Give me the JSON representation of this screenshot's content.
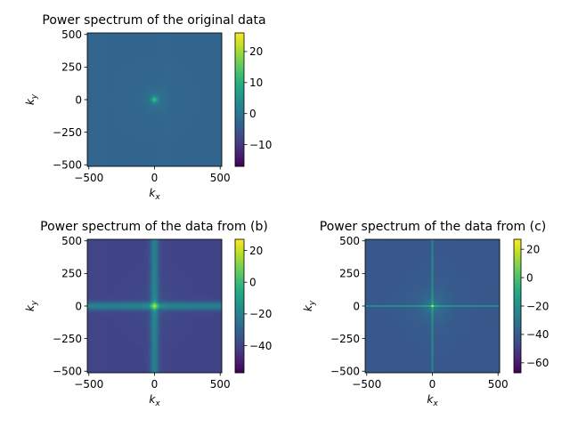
{
  "chart_data": [
    {
      "type": "heatmap",
      "title": "Power spectrum of the original data",
      "xlabel": {
        "base": "k",
        "sub": "x"
      },
      "ylabel": {
        "base": "k",
        "sub": "y"
      },
      "xlim": [
        -512,
        512
      ],
      "ylim": [
        -512,
        512
      ],
      "xticks": [
        -500,
        0,
        500
      ],
      "yticks": [
        500,
        250,
        0,
        -250,
        -500
      ],
      "colormap": "viridis",
      "colorbar": {
        "min": -17,
        "max": 26,
        "ticks": [
          20,
          10,
          0,
          -10
        ]
      },
      "background_value": -3,
      "features": {
        "central_peak": 9,
        "cross": false
      }
    },
    {
      "type": "heatmap",
      "title": "Power spectrum of the data from (b)",
      "xlabel": {
        "base": "k",
        "sub": "x"
      },
      "ylabel": {
        "base": "k",
        "sub": "y"
      },
      "xlim": [
        -512,
        512
      ],
      "ylim": [
        -512,
        512
      ],
      "xticks": [
        -500,
        0,
        500
      ],
      "yticks": [
        500,
        250,
        0,
        -250,
        -500
      ],
      "colormap": "viridis",
      "colorbar": {
        "min": -57,
        "max": 27,
        "ticks": [
          20,
          0,
          -20,
          -40
        ]
      },
      "background_value": -40,
      "features": {
        "central_peak": 14,
        "cross": "wide"
      }
    },
    {
      "type": "heatmap",
      "title": "Power spectrum of the data from (c)",
      "xlabel": {
        "base": "k",
        "sub": "x"
      },
      "ylabel": {
        "base": "k",
        "sub": "y"
      },
      "xlim": [
        -512,
        512
      ],
      "ylim": [
        -512,
        512
      ],
      "xticks": [
        -500,
        0,
        500
      ],
      "yticks": [
        500,
        250,
        0,
        -250,
        -500
      ],
      "colormap": "viridis",
      "colorbar": {
        "min": -67,
        "max": 27,
        "ticks": [
          20,
          0,
          -20,
          -40,
          -60
        ]
      },
      "background_value": -42,
      "features": {
        "central_peak": 5,
        "cross": "thin"
      }
    }
  ]
}
